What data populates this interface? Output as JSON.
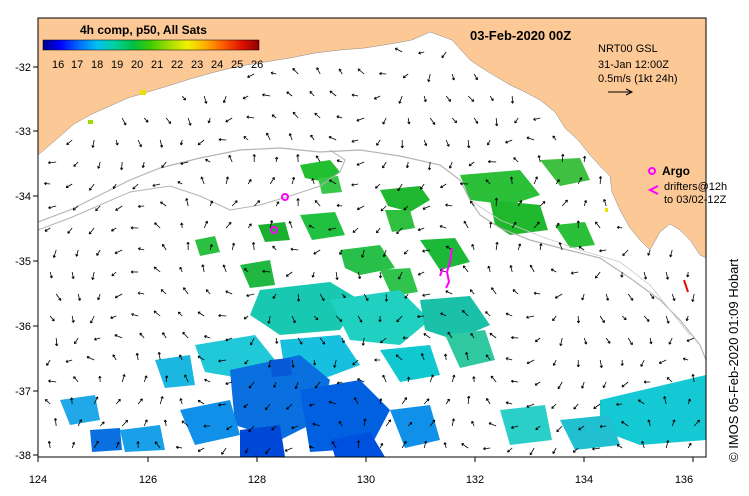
{
  "map": {
    "colorbar": {
      "title": "4h comp, p50, All Sats",
      "ticks": [
        "16",
        "17",
        "18",
        "19",
        "20",
        "21",
        "22",
        "23",
        "24",
        "25",
        "26"
      ],
      "colors": [
        "#00008b",
        "#0000ff",
        "#0060ff",
        "#00a0ff",
        "#00d8e8",
        "#00d0a0",
        "#00c040",
        "#40cc00",
        "#a0dc00",
        "#f0f000",
        "#ffb000",
        "#ff6000",
        "#e01000",
        "#900000"
      ]
    },
    "date": "03-Feb-2020 00Z",
    "currents": {
      "product": "NRT00 GSL",
      "time": "31-Jan 12:00Z",
      "scale": "0.5m/s (1kt 24h)"
    },
    "legend": {
      "argo": "Argo",
      "drifters": "drifters@12h",
      "drifters_to": "to 03/02-12Z"
    },
    "x_ticks": [
      "124",
      "126",
      "128",
      "130",
      "132",
      "134",
      "136"
    ],
    "y_ticks": [
      "-32",
      "-33",
      "-34",
      "-35",
      "-36",
      "-37",
      "-38"
    ],
    "credit": "© IMOS 05-Feb-2020 01:09 Hobart",
    "colors": {
      "land": "#fcc896",
      "argo": "#ff00ff",
      "shelf_line": "#b4b4b4"
    }
  }
}
